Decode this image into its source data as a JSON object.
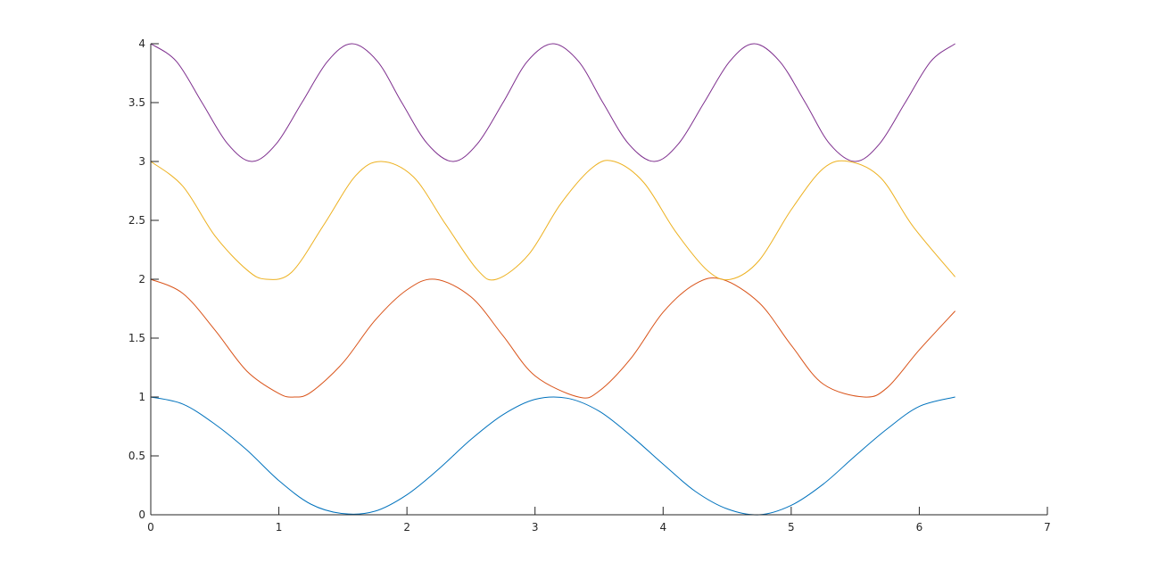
{
  "chart_data": {
    "type": "line",
    "title": "",
    "xlabel": "",
    "ylabel": "",
    "xlim": [
      0,
      7
    ],
    "ylim": [
      0,
      4
    ],
    "grid": false,
    "legend": "none",
    "x_ticks": [
      0,
      1,
      2,
      3,
      4,
      5,
      6,
      7
    ],
    "y_ticks": [
      0,
      0.5,
      1,
      1.5,
      2,
      2.5,
      3,
      3.5,
      4
    ],
    "x_tick_labels": [
      "0",
      "1",
      "2",
      "3",
      "4",
      "5",
      "6",
      "7"
    ],
    "y_tick_labels": [
      "0",
      "0.5",
      "1",
      "1.5",
      "2",
      "2.5",
      "3",
      "3.5",
      "4"
    ],
    "series": [
      {
        "color": "#0072BD",
        "x": [
          0,
          0.25,
          0.5,
          0.75,
          1.0,
          1.25,
          1.5,
          1.75,
          2.0,
          2.25,
          2.5,
          2.75,
          3.0,
          3.25,
          3.5,
          3.75,
          4.0,
          4.25,
          4.5,
          4.75,
          5.0,
          5.25,
          5.5,
          5.75,
          6.0,
          6.28
        ],
        "y": [
          1.0,
          0.94,
          0.77,
          0.55,
          0.29,
          0.09,
          0.01,
          0.03,
          0.17,
          0.39,
          0.64,
          0.85,
          0.98,
          0.99,
          0.88,
          0.67,
          0.43,
          0.2,
          0.05,
          0.0,
          0.08,
          0.26,
          0.5,
          0.73,
          0.92,
          1.0
        ]
      },
      {
        "color": "#D95319",
        "x": [
          0,
          0.25,
          0.5,
          0.75,
          1.0,
          1.12,
          1.25,
          1.5,
          1.75,
          2.0,
          2.22,
          2.5,
          2.75,
          3.0,
          3.34,
          3.5,
          3.75,
          4.0,
          4.25,
          4.46,
          4.75,
          5.0,
          5.25,
          5.57,
          5.75,
          6.0,
          6.28
        ],
        "y": [
          2.0,
          1.88,
          1.57,
          1.22,
          1.03,
          1.0,
          1.04,
          1.29,
          1.65,
          1.91,
          2.0,
          1.85,
          1.52,
          1.18,
          1.0,
          1.05,
          1.33,
          1.72,
          1.96,
          2.0,
          1.8,
          1.44,
          1.11,
          1.0,
          1.08,
          1.4,
          1.73
        ]
      },
      {
        "color": "#EDB120",
        "x": [
          0,
          0.25,
          0.5,
          0.75,
          0.9,
          1.1,
          1.35,
          1.6,
          1.8,
          2.05,
          2.3,
          2.55,
          2.7,
          2.95,
          3.2,
          3.45,
          3.62,
          3.85,
          4.1,
          4.35,
          4.53,
          4.75,
          5.0,
          5.25,
          5.45,
          5.7,
          5.95,
          6.28
        ],
        "y": [
          3.0,
          2.79,
          2.37,
          2.08,
          2.0,
          2.06,
          2.46,
          2.88,
          3.0,
          2.87,
          2.47,
          2.08,
          2.0,
          2.21,
          2.64,
          2.95,
          3.0,
          2.82,
          2.4,
          2.07,
          2.0,
          2.16,
          2.59,
          2.94,
          3.0,
          2.86,
          2.45,
          2.02
        ]
      },
      {
        "color": "#7E2F8E",
        "x": [
          0,
          0.2,
          0.4,
          0.6,
          0.79,
          0.98,
          1.18,
          1.38,
          1.57,
          1.77,
          1.96,
          2.16,
          2.36,
          2.55,
          2.75,
          2.94,
          3.14,
          3.34,
          3.53,
          3.73,
          3.93,
          4.12,
          4.32,
          4.52,
          4.71,
          4.91,
          5.11,
          5.3,
          5.5,
          5.69,
          5.89,
          6.09,
          6.28
        ],
        "y": [
          4.0,
          3.85,
          3.5,
          3.15,
          3.0,
          3.15,
          3.5,
          3.85,
          4.0,
          3.85,
          3.5,
          3.15,
          3.0,
          3.15,
          3.5,
          3.85,
          4.0,
          3.85,
          3.5,
          3.15,
          3.0,
          3.15,
          3.5,
          3.85,
          4.0,
          3.85,
          3.5,
          3.15,
          3.0,
          3.15,
          3.5,
          3.85,
          4.0
        ]
      }
    ]
  }
}
